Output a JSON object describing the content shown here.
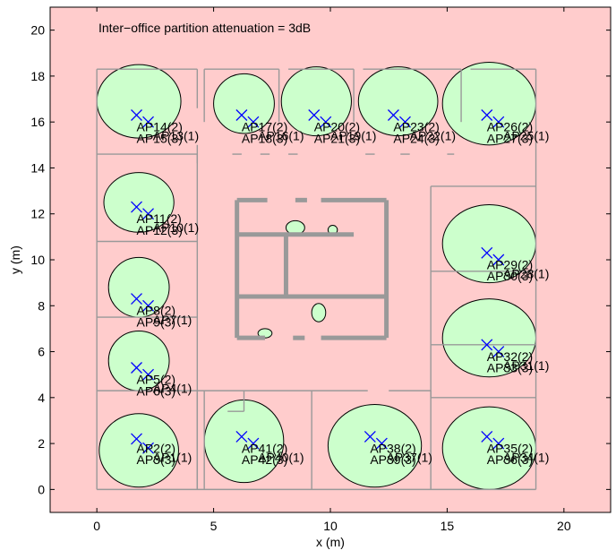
{
  "chart_data": {
    "type": "scatter",
    "title": "Inter−office partition attenuation = 3dB",
    "xlabel": "x (m)",
    "ylabel": "y (m)",
    "xlim": [
      -2,
      22
    ],
    "ylim": [
      -1,
      21
    ],
    "xticks": [
      0,
      5,
      10,
      15,
      20
    ],
    "yticks": [
      0,
      2,
      4,
      6,
      8,
      10,
      12,
      14,
      16,
      18,
      20
    ],
    "background_region_color": "#ffcccc",
    "coverage_color": "#ccffcc",
    "marker_color": "#0000ff",
    "wall_color": "#999999",
    "marker": "x",
    "access_points": [
      {
        "x": 1.7,
        "y": 2.2
      },
      {
        "x": 2.2,
        "y": 1.8
      },
      {
        "x": 1.7,
        "y": 5.3
      },
      {
        "x": 2.2,
        "y": 5.0
      },
      {
        "x": 1.7,
        "y": 8.3
      },
      {
        "x": 2.2,
        "y": 8.0
      },
      {
        "x": 1.7,
        "y": 12.3
      },
      {
        "x": 2.2,
        "y": 12.0
      },
      {
        "x": 1.7,
        "y": 16.3
      },
      {
        "x": 2.2,
        "y": 16.0
      },
      {
        "x": 6.2,
        "y": 16.3
      },
      {
        "x": 6.7,
        "y": 16.0
      },
      {
        "x": 9.3,
        "y": 16.3
      },
      {
        "x": 9.8,
        "y": 16.0
      },
      {
        "x": 12.7,
        "y": 16.3
      },
      {
        "x": 13.2,
        "y": 16.0
      },
      {
        "x": 16.7,
        "y": 16.3
      },
      {
        "x": 17.2,
        "y": 16.0
      },
      {
        "x": 16.7,
        "y": 10.3
      },
      {
        "x": 17.2,
        "y": 10.0
      },
      {
        "x": 16.7,
        "y": 6.3
      },
      {
        "x": 17.2,
        "y": 6.0
      },
      {
        "x": 16.7,
        "y": 2.3
      },
      {
        "x": 17.2,
        "y": 2.0
      },
      {
        "x": 11.7,
        "y": 2.3
      },
      {
        "x": 12.2,
        "y": 2.0
      },
      {
        "x": 6.2,
        "y": 2.3
      },
      {
        "x": 6.7,
        "y": 2.0
      }
    ],
    "annotations": [
      {
        "text": "AP2(2)",
        "x": 1.7,
        "y": 1.6
      },
      {
        "text": "AP1(1)",
        "x": 2.4,
        "y": 1.2
      },
      {
        "text": "AP3(3)",
        "x": 1.7,
        "y": 1.1
      },
      {
        "text": "AP5(2)",
        "x": 1.7,
        "y": 4.6
      },
      {
        "text": "AP4(1)",
        "x": 2.4,
        "y": 4.2
      },
      {
        "text": "AP6(3)",
        "x": 1.7,
        "y": 4.1
      },
      {
        "text": "AP8(2)",
        "x": 1.7,
        "y": 7.6
      },
      {
        "text": "AP7(1)",
        "x": 2.4,
        "y": 7.2
      },
      {
        "text": "AP9(3)",
        "x": 1.7,
        "y": 7.1
      },
      {
        "text": "AP11(2)",
        "x": 1.7,
        "y": 11.6
      },
      {
        "text": "AP10(1)",
        "x": 2.4,
        "y": 11.2
      },
      {
        "text": "AP12(3)",
        "x": 1.7,
        "y": 11.1
      },
      {
        "text": "AP14(2)",
        "x": 1.7,
        "y": 15.6
      },
      {
        "text": "AP13(1)",
        "x": 2.4,
        "y": 15.2
      },
      {
        "text": "AP15(3)",
        "x": 1.7,
        "y": 15.1
      },
      {
        "text": "AP17(2)",
        "x": 6.2,
        "y": 15.6
      },
      {
        "text": "AP16(1)",
        "x": 6.9,
        "y": 15.2
      },
      {
        "text": "AP18(3)",
        "x": 6.2,
        "y": 15.1
      },
      {
        "text": "AP20(2)",
        "x": 9.3,
        "y": 15.6
      },
      {
        "text": "AP19(1)",
        "x": 10.0,
        "y": 15.2
      },
      {
        "text": "AP21(3)",
        "x": 9.3,
        "y": 15.1
      },
      {
        "text": "AP23(2)",
        "x": 12.7,
        "y": 15.6
      },
      {
        "text": "AP22(1)",
        "x": 13.4,
        "y": 15.2
      },
      {
        "text": "AP24(3)",
        "x": 12.7,
        "y": 15.1
      },
      {
        "text": "AP26(2)",
        "x": 16.7,
        "y": 15.6
      },
      {
        "text": "AP25(1)",
        "x": 17.4,
        "y": 15.2
      },
      {
        "text": "AP27(3)",
        "x": 16.7,
        "y": 15.1
      },
      {
        "text": "AP29(2)",
        "x": 16.7,
        "y": 9.6
      },
      {
        "text": "AP28(1)",
        "x": 17.4,
        "y": 9.2
      },
      {
        "text": "AP30(3)",
        "x": 16.7,
        "y": 9.1
      },
      {
        "text": "AP32(2)",
        "x": 16.7,
        "y": 5.6
      },
      {
        "text": "AP31(1)",
        "x": 17.4,
        "y": 5.2
      },
      {
        "text": "AP33(3)",
        "x": 16.7,
        "y": 5.1
      },
      {
        "text": "AP35(2)",
        "x": 16.7,
        "y": 1.6
      },
      {
        "text": "AP34(1)",
        "x": 17.4,
        "y": 1.2
      },
      {
        "text": "AP36(3)",
        "x": 16.7,
        "y": 1.1
      },
      {
        "text": "AP38(2)",
        "x": 11.7,
        "y": 1.6
      },
      {
        "text": "AP37(1)",
        "x": 12.4,
        "y": 1.2
      },
      {
        "text": "AP39(3)",
        "x": 11.7,
        "y": 1.1
      },
      {
        "text": "AP41(2)",
        "x": 6.2,
        "y": 1.6
      },
      {
        "text": "AP40(1)",
        "x": 6.9,
        "y": 1.2
      },
      {
        "text": "AP42(3)",
        "x": 6.2,
        "y": 1.1
      }
    ],
    "coverage_blobs": [
      {
        "cx": 1.8,
        "cy": 1.7,
        "rx": 1.7,
        "ry": 1.6
      },
      {
        "cx": 1.8,
        "cy": 5.6,
        "rx": 1.3,
        "ry": 1.3
      },
      {
        "cx": 1.8,
        "cy": 8.8,
        "rx": 1.3,
        "ry": 1.3
      },
      {
        "cx": 1.8,
        "cy": 12.5,
        "rx": 1.5,
        "ry": 1.3
      },
      {
        "cx": 1.8,
        "cy": 16.9,
        "rx": 1.8,
        "ry": 1.6
      },
      {
        "cx": 6.3,
        "cy": 16.8,
        "rx": 1.3,
        "ry": 1.3
      },
      {
        "cx": 9.4,
        "cy": 16.9,
        "rx": 1.5,
        "ry": 1.5
      },
      {
        "cx": 12.9,
        "cy": 16.9,
        "rx": 1.7,
        "ry": 1.5
      },
      {
        "cx": 16.8,
        "cy": 16.8,
        "rx": 2.0,
        "ry": 1.8
      },
      {
        "cx": 16.8,
        "cy": 10.7,
        "rx": 2.0,
        "ry": 1.7
      },
      {
        "cx": 16.8,
        "cy": 6.6,
        "rx": 2.0,
        "ry": 1.7
      },
      {
        "cx": 16.8,
        "cy": 1.8,
        "rx": 2.0,
        "ry": 1.8
      },
      {
        "cx": 11.9,
        "cy": 1.9,
        "rx": 2.0,
        "ry": 1.8
      },
      {
        "cx": 6.3,
        "cy": 2.1,
        "rx": 1.7,
        "ry": 1.8
      }
    ],
    "grid": false
  }
}
